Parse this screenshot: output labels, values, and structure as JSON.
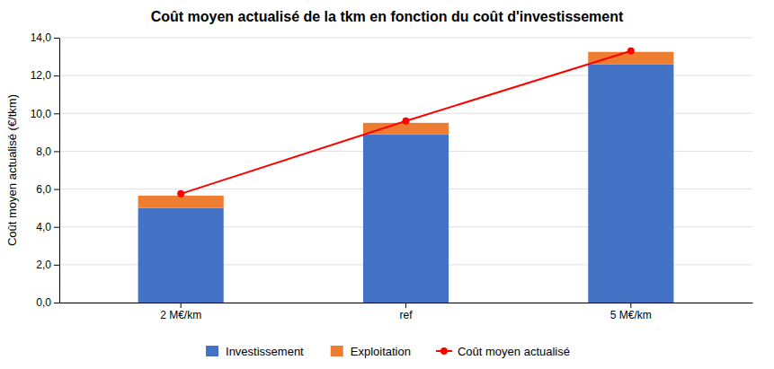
{
  "chart_data": {
    "type": "bar",
    "title": "Coût moyen actualisé de la tkm en fonction du coût d'investissement",
    "ylabel": "Coût moyen actualisé (€/tkm)",
    "categories": [
      "2 M€/km",
      "ref",
      "5 M€/km"
    ],
    "series": [
      {
        "name": "Investissement",
        "type": "bar",
        "color": "#4472C4",
        "values": [
          5.0,
          8.9,
          12.6
        ]
      },
      {
        "name": "Exploitation",
        "type": "bar",
        "color": "#ED7D31",
        "values": [
          0.65,
          0.6,
          0.65
        ]
      },
      {
        "name": "Coût moyen actualisé",
        "type": "line",
        "color": "#FF0000",
        "marker": "circle",
        "values": [
          5.75,
          9.6,
          13.3
        ]
      }
    ],
    "stacked": true,
    "ylim": [
      0,
      14.0
    ],
    "yticks": [
      {
        "value": 0.0,
        "label": "0,0"
      },
      {
        "value": 2.0,
        "label": "2,0"
      },
      {
        "value": 4.0,
        "label": "4,0"
      },
      {
        "value": 6.0,
        "label": "6,0"
      },
      {
        "value": 8.0,
        "label": "8,0"
      },
      {
        "value": 10.0,
        "label": "10,0"
      },
      {
        "value": 12.0,
        "label": "12,0"
      },
      {
        "value": 14.0,
        "label": "14,0"
      }
    ],
    "grid": true,
    "legend": "bottom"
  }
}
